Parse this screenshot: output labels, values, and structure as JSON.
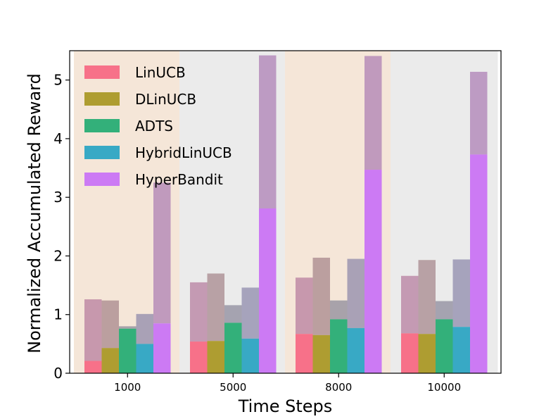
{
  "chart_data": {
    "type": "bar",
    "categories": [
      "1000",
      "5000",
      "8000",
      "10000"
    ],
    "xlabel": "Time Steps",
    "ylabel": "Normalized Accumulated Reward",
    "ylim": [
      0,
      5.5
    ],
    "yticks": [
      0,
      1,
      2,
      3,
      4,
      5
    ],
    "grid": false,
    "legend_position": "top-left",
    "group_backgrounds": [
      "#f5e6d8",
      "#ebebeb",
      "#f5e6d8",
      "#ebebeb"
    ],
    "series": [
      {
        "name": "LinUCB",
        "color": "#f77189",
        "values": [
          0.21,
          0.54,
          0.67,
          0.68
        ],
        "totals": [
          1.26,
          1.55,
          1.63,
          1.66
        ]
      },
      {
        "name": "DLinUCB",
        "color": "#ae9d31",
        "values": [
          0.43,
          0.55,
          0.65,
          0.67
        ],
        "totals": [
          1.24,
          1.7,
          1.97,
          1.93
        ]
      },
      {
        "name": "ADTS",
        "color": "#33b07a",
        "values": [
          0.76,
          0.86,
          0.92,
          0.92
        ],
        "totals": [
          0.8,
          1.16,
          1.24,
          1.23
        ]
      },
      {
        "name": "HybridLinUCB",
        "color": "#38a9c5",
        "values": [
          0.5,
          0.59,
          0.77,
          0.79
        ],
        "totals": [
          1.01,
          1.46,
          1.95,
          1.94
        ]
      },
      {
        "name": "HyperBandit",
        "color": "#cc7af4",
        "values": [
          0.85,
          2.81,
          3.47,
          3.73
        ],
        "totals": [
          3.25,
          5.42,
          5.41,
          5.14
        ]
      }
    ],
    "upper_overlay_color": "#a07aa0"
  }
}
